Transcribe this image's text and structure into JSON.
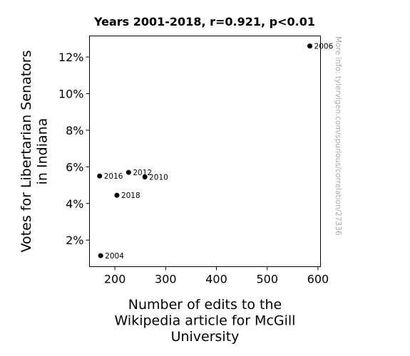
{
  "chart_data": {
    "type": "scatter",
    "title": "Years 2001-2018, r=0.921, p<0.01",
    "xlabel": [
      "Number of edits to the",
      "Wikipedia article for McGill",
      "University"
    ],
    "ylabel": [
      "Votes for Libertarian Senators",
      "in Indiana"
    ],
    "xlim": [
      150,
      605
    ],
    "ylim": [
      0.55,
      13.15
    ],
    "xticks": [
      200,
      300,
      400,
      500,
      600
    ],
    "yticks": [
      2,
      4,
      6,
      8,
      10,
      12
    ],
    "ytick_suffix": "%",
    "grid": false,
    "points": [
      {
        "x": 172,
        "y": 1.15,
        "label": "2004"
      },
      {
        "x": 584,
        "y": 12.6,
        "label": "2006"
      },
      {
        "x": 259,
        "y": 5.45,
        "label": "2010"
      },
      {
        "x": 227,
        "y": 5.7,
        "label": "2012"
      },
      {
        "x": 170,
        "y": 5.5,
        "label": "2016"
      },
      {
        "x": 204,
        "y": 4.45,
        "label": "2018"
      }
    ],
    "marker_color": "#000000",
    "watermark": "More info: tylervigen.com/spurious/correlation/27336"
  }
}
